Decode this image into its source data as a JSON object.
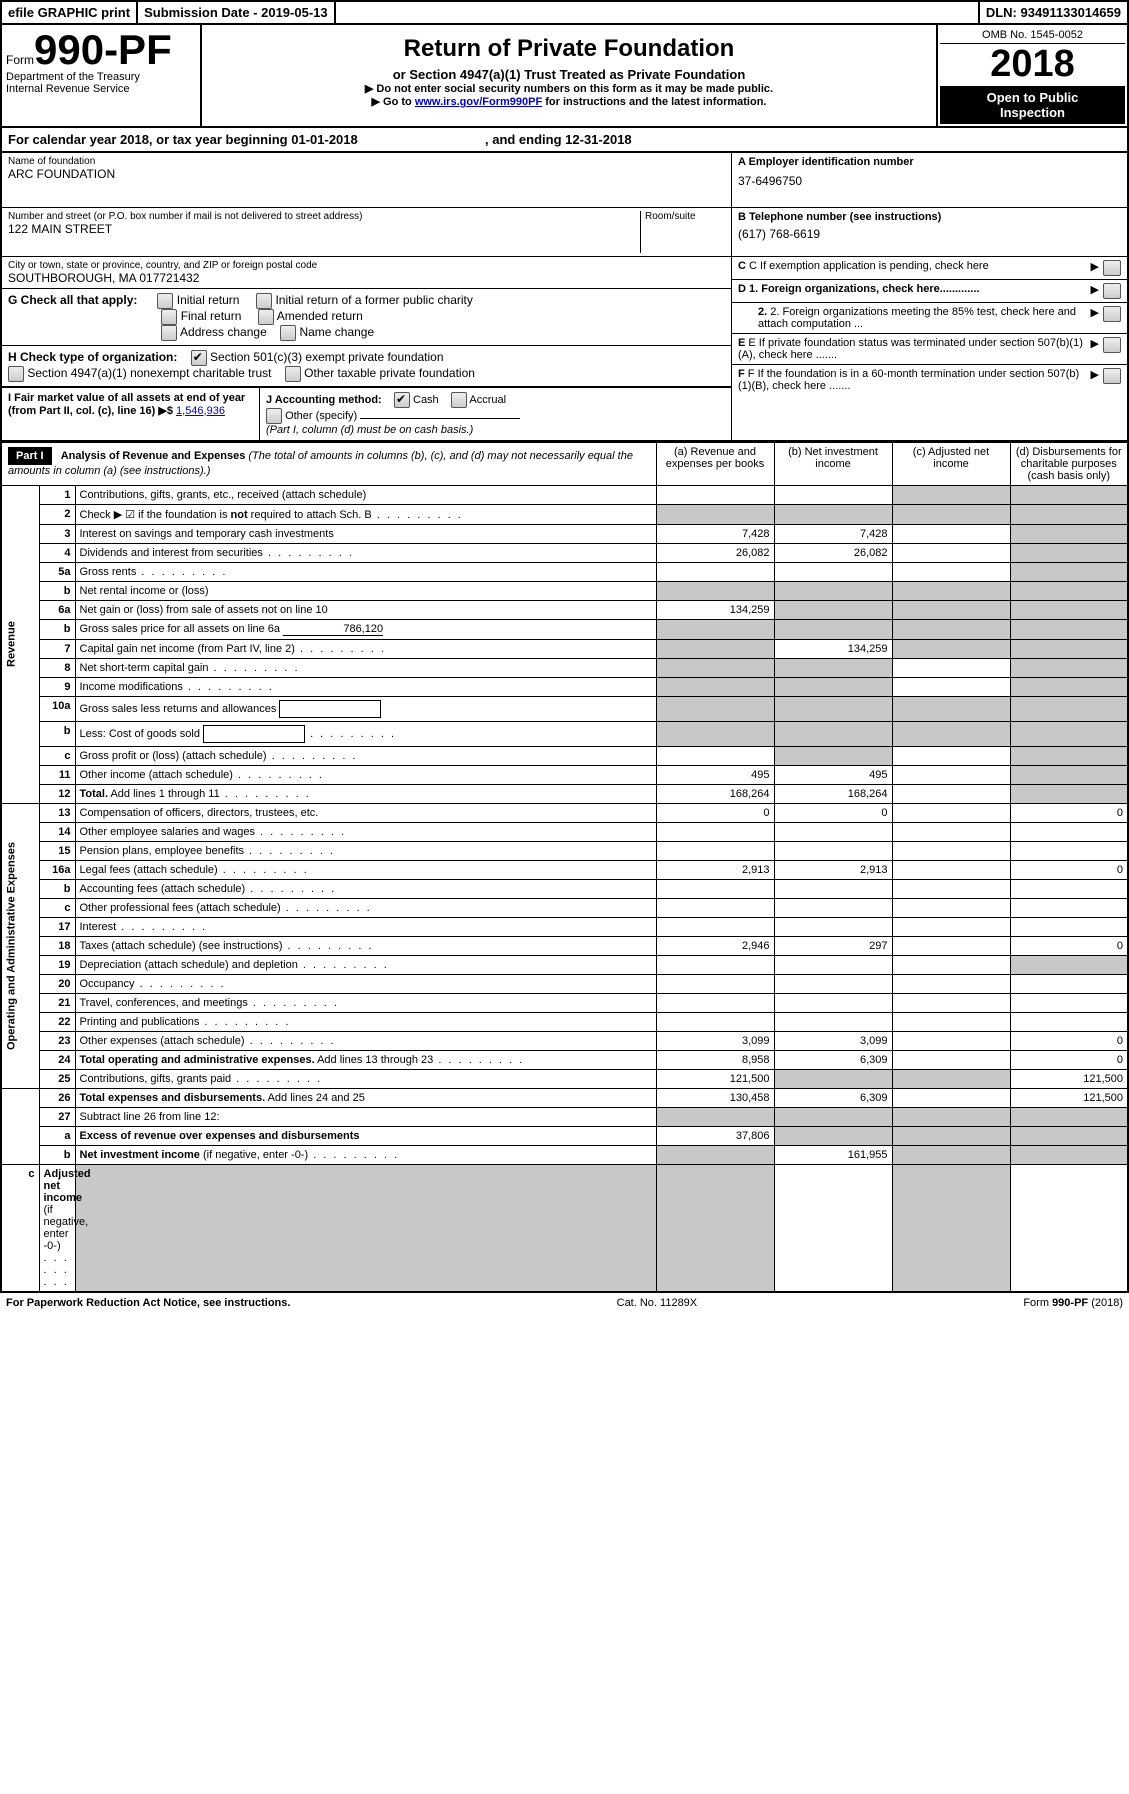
{
  "topbar": {
    "efile": "efile GRAPHIC print",
    "sub_label": "Submission Date - ",
    "sub_date": "2019-05-13",
    "dln_label": "DLN: ",
    "dln": "93491133014659"
  },
  "header": {
    "form_word": "Form",
    "form_no": "990-PF",
    "dept1": "Department of the Treasury",
    "dept2": "Internal Revenue Service",
    "title": "Return of Private Foundation",
    "subtitle": "or Section 4947(a)(1) Trust Treated as Private Foundation",
    "instr1": "▶ Do not enter social security numbers on this form as it may be made public.",
    "instr2a": "▶ Go to ",
    "instr2_link": "www.irs.gov/Form990PF",
    "instr2b": " for instructions and the latest information.",
    "omb": "OMB No. 1545-0052",
    "year": "2018",
    "open1": "Open to Public",
    "open2": "Inspection"
  },
  "cal": {
    "text_a": "For calendar year 2018, or tax year beginning ",
    "begin": "01-01-2018",
    "text_b": " , and ending ",
    "end": "12-31-2018"
  },
  "info": {
    "name_label": "Name of foundation",
    "name": "ARC FOUNDATION",
    "addr_label": "Number and street (or P.O. box number if mail is not delivered to street address)",
    "room_label": "Room/suite",
    "addr": "122 MAIN STREET",
    "city_label": "City or town, state or province, country, and ZIP or foreign postal code",
    "city": "SOUTHBOROUGH, MA  017721432",
    "ein_label": "A Employer identification number",
    "ein": "37-6496750",
    "phone_label": "B Telephone number (see instructions)",
    "phone": "(617) 768-6619",
    "c_label": "C If exemption application is pending, check here",
    "d1_label": "D 1. Foreign organizations, check here.............",
    "d2_label": "2. Foreign organizations meeting the 85% test, check here and attach computation ...",
    "e_label": "E  If private foundation status was terminated under section 507(b)(1)(A), check here .......",
    "f_label": "F  If the foundation is in a 60-month termination under section 507(b)(1)(B), check here .......",
    "g_label": "G Check all that apply:",
    "g_opts": [
      "Initial return",
      "Initial return of a former public charity",
      "Final return",
      "Amended return",
      "Address change",
      "Name change"
    ],
    "h_label": "H Check type of organization:",
    "h_opt1": "Section 501(c)(3) exempt private foundation",
    "h_opt2": "Section 4947(a)(1) nonexempt charitable trust",
    "h_opt3": "Other taxable private foundation",
    "i_label": "I Fair market value of all assets at end of year (from Part II, col. (c), line 16) ▶$",
    "i_val": "1,546,936",
    "j_label": "J Accounting method:",
    "j_cash": "Cash",
    "j_accrual": "Accrual",
    "j_other": "Other (specify)",
    "j_note": "(Part I, column (d) must be on cash basis.)"
  },
  "part1": {
    "badge": "Part I",
    "title": "Analysis of Revenue and Expenses",
    "title_note": " (The total of amounts in columns (b), (c), and (d) may not necessarily equal the amounts in column (a) (see instructions).)",
    "col_a": "(a)   Revenue and expenses per books",
    "col_b": "(b)  Net investment income",
    "col_c": "(c)  Adjusted net income",
    "col_d": "(d)  Disbursements for charitable purposes (cash basis only)",
    "side_rev": "Revenue",
    "side_exp": "Operating and Administrative Expenses"
  },
  "rows": [
    {
      "n": "1",
      "d": "Contributions, gifts, grants, etc., received (attach schedule)",
      "a": "",
      "b": "",
      "c": "gray",
      "dd": "gray"
    },
    {
      "n": "2",
      "d": "Check ▶ ☑ if the foundation is <b>not</b> required to attach Sch. B",
      "dots": true,
      "a": "gray",
      "b": "gray",
      "c": "gray",
      "dd": "gray"
    },
    {
      "n": "3",
      "d": "Interest on savings and temporary cash investments",
      "a": "7,428",
      "b": "7,428",
      "c": "",
      "dd": "gray"
    },
    {
      "n": "4",
      "d": "Dividends and interest from securities",
      "dots": true,
      "a": "26,082",
      "b": "26,082",
      "c": "",
      "dd": "gray"
    },
    {
      "n": "5a",
      "d": "Gross rents",
      "dots": true,
      "a": "",
      "b": "",
      "c": "",
      "dd": "gray"
    },
    {
      "n": "b",
      "d": "Net rental income or (loss)",
      "a": "gray",
      "b": "gray",
      "c": "gray",
      "dd": "gray"
    },
    {
      "n": "6a",
      "d": "Net gain or (loss) from sale of assets not on line 10",
      "a": "134,259",
      "b": "gray",
      "c": "gray",
      "dd": "gray"
    },
    {
      "n": "b",
      "d": "Gross sales price for all assets on line 6a",
      "inline": "786,120",
      "a": "gray",
      "b": "gray",
      "c": "gray",
      "dd": "gray"
    },
    {
      "n": "7",
      "d": "Capital gain net income (from Part IV, line 2)",
      "dots": true,
      "a": "gray",
      "b": "134,259",
      "c": "gray",
      "dd": "gray"
    },
    {
      "n": "8",
      "d": "Net short-term capital gain",
      "dots": true,
      "a": "gray",
      "b": "gray",
      "c": "",
      "dd": "gray"
    },
    {
      "n": "9",
      "d": "Income modifications",
      "dots": true,
      "a": "gray",
      "b": "gray",
      "c": "",
      "dd": "gray"
    },
    {
      "n": "10a",
      "d": "Gross sales less returns and allowances",
      "box": true,
      "a": "gray",
      "b": "gray",
      "c": "gray",
      "dd": "gray"
    },
    {
      "n": "b",
      "d": "Less: Cost of goods sold",
      "dots": true,
      "box": true,
      "a": "gray",
      "b": "gray",
      "c": "gray",
      "dd": "gray"
    },
    {
      "n": "c",
      "d": "Gross profit or (loss) (attach schedule)",
      "dots": true,
      "a": "",
      "b": "gray",
      "c": "",
      "dd": "gray"
    },
    {
      "n": "11",
      "d": "Other income (attach schedule)",
      "dots": true,
      "a": "495",
      "b": "495",
      "c": "",
      "dd": "gray"
    },
    {
      "n": "12",
      "d": "<b>Total.</b> Add lines 1 through 11",
      "dots": true,
      "a": "168,264",
      "b": "168,264",
      "c": "",
      "dd": "gray"
    },
    {
      "n": "13",
      "d": "Compensation of officers, directors, trustees, etc.",
      "a": "0",
      "b": "0",
      "c": "",
      "dd": "0"
    },
    {
      "n": "14",
      "d": "Other employee salaries and wages",
      "dots": true,
      "a": "",
      "b": "",
      "c": "",
      "dd": ""
    },
    {
      "n": "15",
      "d": "Pension plans, employee benefits",
      "dots": true,
      "a": "",
      "b": "",
      "c": "",
      "dd": ""
    },
    {
      "n": "16a",
      "d": "Legal fees (attach schedule)",
      "dots": true,
      "a": "2,913",
      "b": "2,913",
      "c": "",
      "dd": "0"
    },
    {
      "n": "b",
      "d": "Accounting fees (attach schedule)",
      "dots": true,
      "a": "",
      "b": "",
      "c": "",
      "dd": ""
    },
    {
      "n": "c",
      "d": "Other professional fees (attach schedule)",
      "dots": true,
      "a": "",
      "b": "",
      "c": "",
      "dd": ""
    },
    {
      "n": "17",
      "d": "Interest",
      "dots": true,
      "a": "",
      "b": "",
      "c": "",
      "dd": ""
    },
    {
      "n": "18",
      "d": "Taxes (attach schedule) (see instructions)",
      "dots": true,
      "a": "2,946",
      "b": "297",
      "c": "",
      "dd": "0"
    },
    {
      "n": "19",
      "d": "Depreciation (attach schedule) and depletion",
      "dots": true,
      "a": "",
      "b": "",
      "c": "",
      "dd": "gray"
    },
    {
      "n": "20",
      "d": "Occupancy",
      "dots": true,
      "a": "",
      "b": "",
      "c": "",
      "dd": ""
    },
    {
      "n": "21",
      "d": "Travel, conferences, and meetings",
      "dots": true,
      "a": "",
      "b": "",
      "c": "",
      "dd": ""
    },
    {
      "n": "22",
      "d": "Printing and publications",
      "dots": true,
      "a": "",
      "b": "",
      "c": "",
      "dd": ""
    },
    {
      "n": "23",
      "d": "Other expenses (attach schedule)",
      "dots": true,
      "a": "3,099",
      "b": "3,099",
      "c": "",
      "dd": "0"
    },
    {
      "n": "24",
      "d": "<b>Total operating and administrative expenses.</b> Add lines 13 through 23",
      "dots": true,
      "a": "8,958",
      "b": "6,309",
      "c": "",
      "dd": "0"
    },
    {
      "n": "25",
      "d": "Contributions, gifts, grants paid",
      "dots": true,
      "a": "121,500",
      "b": "gray",
      "c": "gray",
      "dd": "121,500"
    },
    {
      "n": "26",
      "d": "<b>Total expenses and disbursements.</b> Add lines 24 and 25",
      "a": "130,458",
      "b": "6,309",
      "c": "",
      "dd": "121,500"
    },
    {
      "n": "27",
      "d": "Subtract line 26 from line 12:",
      "a": "gray",
      "b": "gray",
      "c": "gray",
      "dd": "gray"
    },
    {
      "n": "a",
      "d": "<b>Excess of revenue over expenses and disbursements</b>",
      "a": "37,806",
      "b": "gray",
      "c": "gray",
      "dd": "gray"
    },
    {
      "n": "b",
      "d": "<b>Net investment income</b> (if negative, enter -0-)",
      "dots": true,
      "a": "gray",
      "b": "161,955",
      "c": "gray",
      "dd": "gray"
    },
    {
      "n": "c",
      "d": "<b>Adjusted net income</b> (if negative, enter -0-)",
      "dots": true,
      "a": "gray",
      "b": "gray",
      "c": "",
      "dd": "gray"
    }
  ],
  "footer": {
    "left": "For Paperwork Reduction Act Notice, see instructions.",
    "mid": "Cat. No. 11289X",
    "right": "Form 990-PF (2018)"
  }
}
